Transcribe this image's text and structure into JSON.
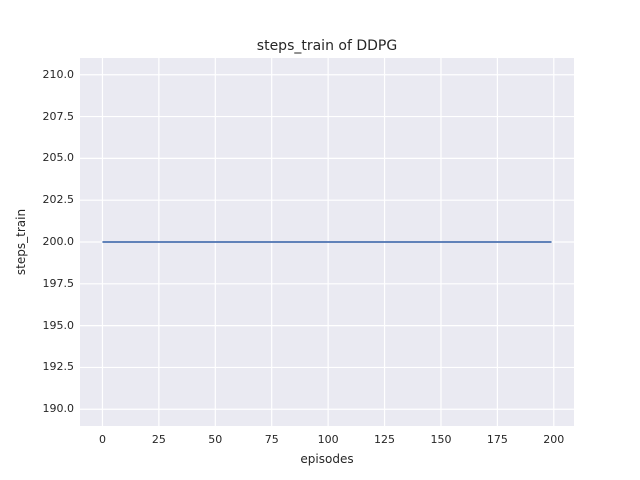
{
  "chart_data": {
    "type": "line",
    "title": "steps_train of DDPG",
    "xlabel": "episodes",
    "ylabel": "steps_train",
    "series": [
      {
        "name": "steps_train",
        "color": "#4c72b0",
        "points": [
          [
            0,
            200
          ],
          [
            199,
            200
          ]
        ],
        "constant_y": 200
      }
    ],
    "xticks": [
      0,
      25,
      50,
      75,
      100,
      125,
      150,
      175,
      200
    ],
    "xtick_labels": [
      "0",
      "25",
      "50",
      "75",
      "100",
      "125",
      "150",
      "175",
      "200"
    ],
    "yticks": [
      190.0,
      192.5,
      195.0,
      197.5,
      200.0,
      202.5,
      205.0,
      207.5,
      210.0
    ],
    "ytick_labels": [
      "190.0",
      "192.5",
      "195.0",
      "197.5",
      "200.0",
      "202.5",
      "205.0",
      "207.5",
      "210.0"
    ],
    "xlim": [
      -9.95,
      208.95
    ],
    "ylim": [
      189.0,
      211.0
    ],
    "grid": true,
    "legend": false,
    "plot_background": "#eaeaf2",
    "grid_color": "#ffffff",
    "text_color": "#262626"
  }
}
